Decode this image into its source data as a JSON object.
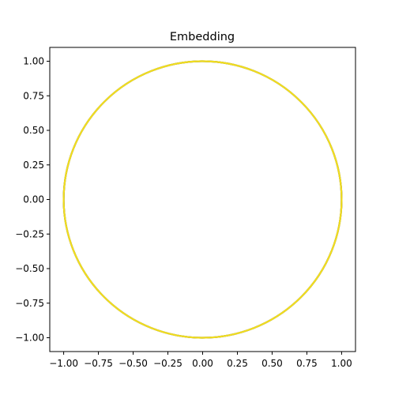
{
  "chart_data": {
    "type": "scatter",
    "title": "Embedding",
    "xlabel": "",
    "ylabel": "",
    "xlim": [
      -1.1,
      1.1
    ],
    "ylim": [
      -1.1,
      1.1
    ],
    "xticks": [
      -1.0,
      -0.75,
      -0.5,
      -0.25,
      0.0,
      0.25,
      0.5,
      0.75,
      1.0
    ],
    "yticks": [
      -1.0,
      -0.75,
      -0.5,
      -0.25,
      0.0,
      0.25,
      0.5,
      0.75,
      1.0
    ],
    "xtick_labels": [
      "−1.00",
      "−0.75",
      "−0.50",
      "−0.25",
      "0.00",
      "0.25",
      "0.50",
      "0.75",
      "1.00"
    ],
    "ytick_labels": [
      "−1.00",
      "−0.75",
      "−0.50",
      "−0.25",
      "0.00",
      "0.25",
      "0.50",
      "0.75",
      "1.00"
    ],
    "grid": false,
    "legend": "none",
    "series": [
      {
        "shape": "unit circle",
        "center": [
          0.0,
          0.0
        ],
        "radius": 1.0,
        "color": "#f2de1f",
        "underlay_color": "#2b2b2b"
      }
    ]
  }
}
